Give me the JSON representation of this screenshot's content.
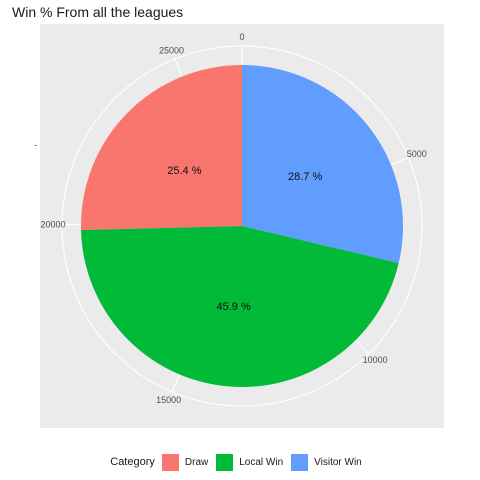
{
  "title": "Win % From all the leagues",
  "y_axis_tick": "-",
  "colors": {
    "panel": "#EBEBEB",
    "grid": "#FFFFFF"
  },
  "chart_data": {
    "type": "pie",
    "title": "Win % From all the leagues",
    "theta_ticks": [
      "0",
      "5000",
      "10000",
      "15000",
      "20000",
      "25000"
    ],
    "theta_tick_values": [
      0,
      5000,
      10000,
      15000,
      20000,
      25000
    ],
    "series": [
      {
        "name": "Visitor Win",
        "value": 7640,
        "label": "28.7 %",
        "color": "#619CFF"
      },
      {
        "name": "Local Win",
        "value": 12220,
        "label": "45.9 %",
        "color": "#00BA38"
      },
      {
        "name": "Draw",
        "value": 6760,
        "label": "25.4 %",
        "color": "#F8766D"
      }
    ],
    "legend": {
      "title": "Category",
      "position": "bottom",
      "entries": [
        {
          "name": "Draw",
          "color": "#F8766D"
        },
        {
          "name": "Local Win",
          "color": "#00BA38"
        },
        {
          "name": "Visitor Win",
          "color": "#619CFF"
        }
      ]
    }
  }
}
